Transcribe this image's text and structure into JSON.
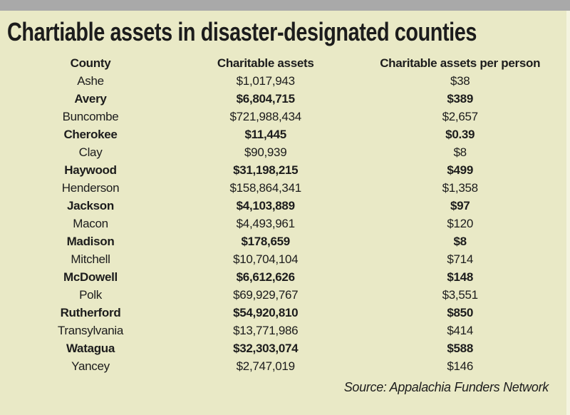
{
  "colors": {
    "background": "#e9e9c6",
    "top_bar": "#a9a9a9",
    "edge_strip": "#f4f4e0",
    "text": "#1c1c1c"
  },
  "title": "Chartiable assets in disaster-designated counties",
  "table": {
    "columns": [
      "County",
      "Charitable assets",
      "Charitable assets per person"
    ],
    "rows": [
      {
        "county": "Ashe",
        "assets": "$1,017,943",
        "per_person": "$38",
        "bold": false
      },
      {
        "county": "Avery",
        "assets": "$6,804,715",
        "per_person": "$389",
        "bold": true
      },
      {
        "county": "Buncombe",
        "assets": "$721,988,434",
        "per_person": "$2,657",
        "bold": false
      },
      {
        "county": "Cherokee",
        "assets": "$11,445",
        "per_person": "$0.39",
        "bold": true
      },
      {
        "county": "Clay",
        "assets": "$90,939",
        "per_person": "$8",
        "bold": false
      },
      {
        "county": "Haywood",
        "assets": "$31,198,215",
        "per_person": "$499",
        "bold": true
      },
      {
        "county": "Henderson",
        "assets": "$158,864,341",
        "per_person": "$1,358",
        "bold": false
      },
      {
        "county": "Jackson",
        "assets": "$4,103,889",
        "per_person": "$97",
        "bold": true
      },
      {
        "county": "Macon",
        "assets": "$4,493,961",
        "per_person": "$120",
        "bold": false
      },
      {
        "county": "Madison",
        "assets": "$178,659",
        "per_person": "$8",
        "bold": true
      },
      {
        "county": "Mitchell",
        "assets": "$10,704,104",
        "per_person": "$714",
        "bold": false
      },
      {
        "county": "McDowell",
        "assets": "$6,612,626",
        "per_person": "$148",
        "bold": true
      },
      {
        "county": "Polk",
        "assets": "$69,929,767",
        "per_person": "$3,551",
        "bold": false
      },
      {
        "county": "Rutherford",
        "assets": "$54,920,810",
        "per_person": "$850",
        "bold": true
      },
      {
        "county": "Transylvania",
        "assets": "$13,771,986",
        "per_person": "$414",
        "bold": false
      },
      {
        "county": "Watagua",
        "assets": "$32,303,074",
        "per_person": "$588",
        "bold": true
      },
      {
        "county": "Yancey",
        "assets": "$2,747,019",
        "per_person": "$146",
        "bold": false
      }
    ]
  },
  "source": "Source: Appalachia Funders Network",
  "chart_data": {
    "type": "table",
    "title": "Chartiable assets in disaster-designated counties",
    "columns": [
      "County",
      "Charitable assets",
      "Charitable assets per person"
    ],
    "categories": [
      "Ashe",
      "Avery",
      "Buncombe",
      "Cherokee",
      "Clay",
      "Haywood",
      "Henderson",
      "Jackson",
      "Macon",
      "Madison",
      "Mitchell",
      "McDowell",
      "Polk",
      "Rutherford",
      "Transylvania",
      "Watagua",
      "Yancey"
    ],
    "series": [
      {
        "name": "Charitable assets",
        "values": [
          1017943,
          6804715,
          721988434,
          11445,
          90939,
          31198215,
          158864341,
          4103889,
          4493961,
          178659,
          10704104,
          6612626,
          69929767,
          54920810,
          13771986,
          32303074,
          2747019
        ]
      },
      {
        "name": "Charitable assets per person",
        "values": [
          38,
          389,
          2657,
          0.39,
          8,
          499,
          1358,
          97,
          120,
          8,
          714,
          148,
          3551,
          850,
          414,
          588,
          146
        ]
      }
    ],
    "emphasized_rows": [
      "Avery",
      "Cherokee",
      "Haywood",
      "Jackson",
      "Madison",
      "McDowell",
      "Rutherford",
      "Watagua"
    ],
    "source": "Source: Appalachia Funders Network"
  }
}
